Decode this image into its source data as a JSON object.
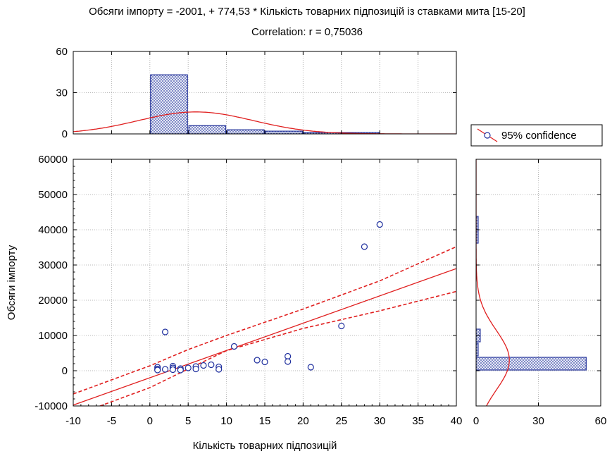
{
  "chart_data": {
    "type": "scatter",
    "title": "Обсяги імпорту = -2001, + 774,53 * Кількість товарних підпозицій із ставками мита [15-20]",
    "subtitle": "Correlation: r = 0,75036",
    "xlabel": "Кількість товарних підпозицій",
    "ylabel": "Обсяги імпорту",
    "xlim": [
      -10,
      40
    ],
    "ylim": [
      -10000,
      60000
    ],
    "x_ticks": [
      "-10",
      "-5",
      "0",
      "5",
      "10",
      "15",
      "20",
      "25",
      "30",
      "35",
      "40"
    ],
    "y_ticks": [
      "-10000",
      "0",
      "10000",
      "20000",
      "30000",
      "40000",
      "50000",
      "60000"
    ],
    "grid": true,
    "legend": {
      "label": "95% confidence",
      "placement": "right, between top and side histograms"
    },
    "regression": {
      "intercept": -2001,
      "slope": 774.53
    },
    "confidence_band": {
      "upper": [
        [
          -10,
          -6600
        ],
        [
          0,
          1400
        ],
        [
          5,
          6000
        ],
        [
          10,
          10000
        ],
        [
          20,
          17500
        ],
        [
          30,
          25500
        ],
        [
          40,
          35200
        ]
      ],
      "lower": [
        [
          -10,
          -12800
        ],
        [
          0,
          -4800
        ],
        [
          5,
          500
        ],
        [
          10,
          5700
        ],
        [
          20,
          12000
        ],
        [
          30,
          17000
        ],
        [
          40,
          22500
        ]
      ]
    },
    "points": [
      {
        "x": 1,
        "y": 1000
      },
      {
        "x": 1,
        "y": 500
      },
      {
        "x": 1,
        "y": 200
      },
      {
        "x": 2,
        "y": 11000
      },
      {
        "x": 2,
        "y": 400
      },
      {
        "x": 3,
        "y": 1300
      },
      {
        "x": 3,
        "y": 800
      },
      {
        "x": 3,
        "y": 300
      },
      {
        "x": 4,
        "y": 600
      },
      {
        "x": 4,
        "y": 200
      },
      {
        "x": 5,
        "y": 800
      },
      {
        "x": 6,
        "y": 1200
      },
      {
        "x": 6,
        "y": 500
      },
      {
        "x": 7,
        "y": 1500
      },
      {
        "x": 8,
        "y": 1700
      },
      {
        "x": 9,
        "y": 1100
      },
      {
        "x": 9,
        "y": 400
      },
      {
        "x": 11,
        "y": 6900
      },
      {
        "x": 14,
        "y": 3000
      },
      {
        "x": 15,
        "y": 2500
      },
      {
        "x": 18,
        "y": 4100
      },
      {
        "x": 18,
        "y": 2600
      },
      {
        "x": 21,
        "y": 1000
      },
      {
        "x": 25,
        "y": 12700
      },
      {
        "x": 28,
        "y": 35200
      },
      {
        "x": 30,
        "y": 41500
      }
    ],
    "top_histogram": {
      "ylim": [
        0,
        60
      ],
      "y_ticks": [
        "0",
        "30",
        "60"
      ],
      "bins": [
        {
          "from": 0,
          "to": 5,
          "count": 43
        },
        {
          "from": 5,
          "to": 10,
          "count": 6
        },
        {
          "from": 10,
          "to": 15,
          "count": 3
        },
        {
          "from": 15,
          "to": 20,
          "count": 2
        },
        {
          "from": 20,
          "to": 25,
          "count": 1
        },
        {
          "from": 25,
          "to": 30,
          "count": 1
        }
      ],
      "normal_curve": {
        "mean": 6,
        "sd": 7.5,
        "peak": 16
      }
    },
    "side_histogram": {
      "xlim": [
        0,
        60
      ],
      "x_ticks": [
        "0",
        "30",
        "60"
      ],
      "bins": [
        {
          "from": 0,
          "to": 4000,
          "count": 53
        },
        {
          "from": 4000,
          "to": 8000,
          "count": 1
        },
        {
          "from": 8000,
          "to": 12000,
          "count": 2
        },
        {
          "from": 36000,
          "to": 44000,
          "count": 1
        }
      ],
      "normal_curve": {
        "mean": 3000,
        "sd": 8500,
        "peak": 16
      }
    },
    "colors": {
      "marker": "#1f2f9e",
      "fit_line": "#e01f1f",
      "bar_edge": "#23329a",
      "bar_fill": "#e6e9f4",
      "bar_pattern": "#3a49a8",
      "grid": "#b7b7b7"
    }
  }
}
